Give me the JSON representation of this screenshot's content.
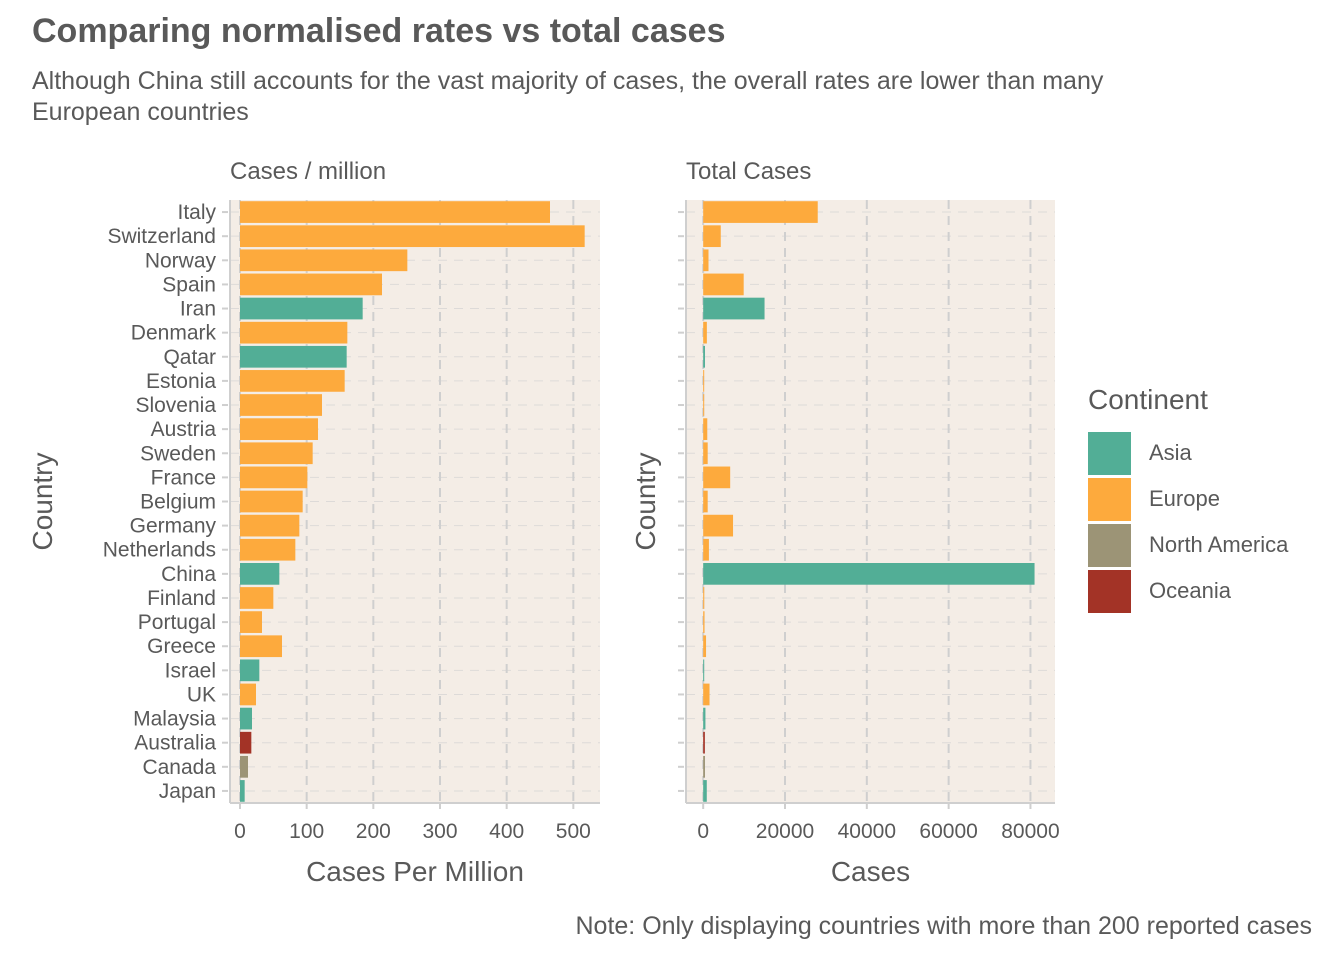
{
  "title": "Comparing normalised rates vs total cases",
  "subtitle": "Although China still accounts for the vast majority of cases, the overall rates are lower than many European countries",
  "note": "Note: Only displaying countries with more than 200 reported cases",
  "colors": {
    "Asia": "#52ae96",
    "Europe": "#fdaa3d",
    "North America": "#9c9476",
    "Oceania": "#a33326",
    "panel_bg": "#f4ede6",
    "grid": "#cfcfcf"
  },
  "legend": {
    "title": "Continent",
    "items": [
      "Asia",
      "Europe",
      "North America",
      "Oceania"
    ]
  },
  "chart_data": [
    {
      "type": "bar",
      "orientation": "horizontal",
      "panel_title": "Cases / million",
      "xlabel": "Cases Per Million",
      "ylabel": "Country",
      "xlim": [
        -15,
        540
      ],
      "xticks": [
        0,
        100,
        200,
        300,
        400,
        500
      ],
      "grid": true,
      "categories": [
        "Italy",
        "Switzerland",
        "Norway",
        "Spain",
        "Iran",
        "Denmark",
        "Qatar",
        "Estonia",
        "Slovenia",
        "Austria",
        "Sweden",
        "France",
        "Belgium",
        "Germany",
        "Netherlands",
        "China",
        "Finland",
        "Portugal",
        "Greece",
        "Israel",
        "UK",
        "Malaysia",
        "Australia",
        "Canada",
        "Japan"
      ],
      "continents": [
        "Europe",
        "Europe",
        "Europe",
        "Europe",
        "Asia",
        "Europe",
        "Asia",
        "Europe",
        "Europe",
        "Europe",
        "Europe",
        "Europe",
        "Europe",
        "Europe",
        "Europe",
        "Asia",
        "Europe",
        "Europe",
        "Europe",
        "Asia",
        "Europe",
        "Asia",
        "Oceania",
        "North America",
        "Asia"
      ],
      "values": [
        465,
        517,
        251,
        213,
        184,
        161,
        160,
        157,
        123,
        117,
        109,
        101,
        94,
        89,
        83,
        59,
        50,
        33,
        63,
        29,
        24,
        18,
        17,
        12,
        7
      ]
    },
    {
      "type": "bar",
      "orientation": "horizontal",
      "panel_title": "Total Cases",
      "xlabel": "Cases",
      "ylabel": "Country",
      "xlim": [
        -4200,
        86000
      ],
      "xticks": [
        0,
        20000,
        40000,
        60000,
        80000
      ],
      "grid": true,
      "categories": [
        "Italy",
        "Switzerland",
        "Norway",
        "Spain",
        "Iran",
        "Denmark",
        "Qatar",
        "Estonia",
        "Slovenia",
        "Austria",
        "Sweden",
        "France",
        "Belgium",
        "Germany",
        "Netherlands",
        "China",
        "Finland",
        "Portugal",
        "Greece",
        "Israel",
        "UK",
        "Malaysia",
        "Australia",
        "Canada",
        "Japan"
      ],
      "continents": [
        "Europe",
        "Europe",
        "Europe",
        "Europe",
        "Asia",
        "Europe",
        "Asia",
        "Europe",
        "Europe",
        "Europe",
        "Europe",
        "Europe",
        "Europe",
        "Europe",
        "Europe",
        "Asia",
        "Europe",
        "Europe",
        "Europe",
        "Asia",
        "Europe",
        "Asia",
        "Oceania",
        "North America",
        "Asia"
      ],
      "values": [
        28000,
        4300,
        1300,
        9900,
        15000,
        900,
        440,
        210,
        250,
        1000,
        1100,
        6600,
        1100,
        7300,
        1400,
        81000,
        270,
        330,
        700,
        250,
        1550,
        550,
        410,
        440,
        880
      ]
    }
  ]
}
